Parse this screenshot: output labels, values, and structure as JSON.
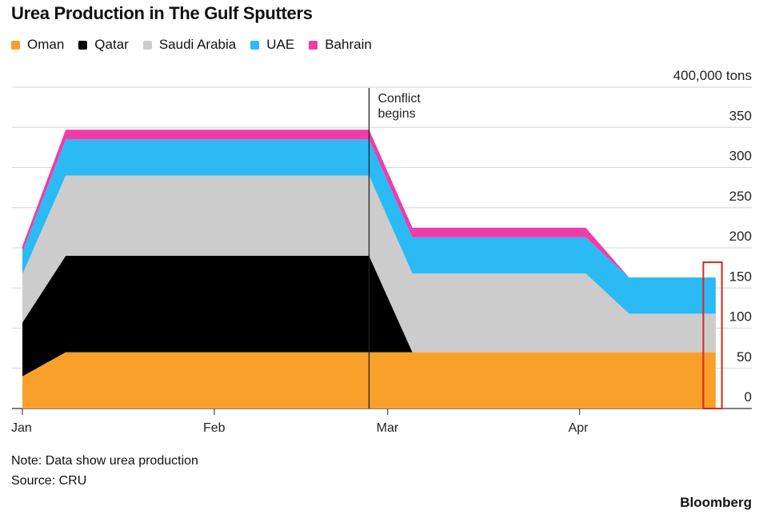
{
  "chart_data": {
    "type": "area",
    "stacked": true,
    "title": "Urea Production in The Gulf Sputters",
    "ylabel": "",
    "unit_label": "400,000 tons",
    "ylim": [
      0,
      400
    ],
    "yticks": [
      "0",
      "50",
      "100",
      "150",
      "200",
      "250",
      "300",
      "350"
    ],
    "xticks": [
      {
        "label": "Jan",
        "date": "Jan 1"
      },
      {
        "label": "Feb",
        "date": "Feb 1"
      },
      {
        "label": "Mar",
        "date": "Mar 1"
      },
      {
        "label": "Apr",
        "date": "Apr 1"
      }
    ],
    "grid": true,
    "legend_placement": "top-left",
    "x": [
      "Jan 1",
      "Jan 8",
      "Feb 26",
      "Mar 5",
      "Apr 2",
      "Apr 9",
      "Apr 23"
    ],
    "series": [
      {
        "name": "Oman",
        "color": "#f9a02a",
        "values": [
          40,
          70,
          70,
          70,
          70,
          70,
          70
        ]
      },
      {
        "name": "Qatar",
        "color": "#000000",
        "values": [
          67,
          120,
          120,
          0,
          0,
          0,
          0
        ]
      },
      {
        "name": "Saudi Arabia",
        "color": "#cccccc",
        "values": [
          60,
          100,
          100,
          98,
          98,
          48,
          48
        ]
      },
      {
        "name": "UAE",
        "color": "#2bbaf3",
        "values": [
          28,
          45,
          45,
          45,
          45,
          45,
          45
        ]
      },
      {
        "name": "Bahrain",
        "color": "#f03ca7",
        "values": [
          7,
          12,
          12,
          12,
          12,
          0,
          0
        ]
      }
    ],
    "annotations": [
      {
        "text_line1": "Conflict",
        "text_line2": "begins",
        "date": "Feb 26"
      }
    ],
    "highlight": {
      "from": "Apr 21",
      "to": "Apr 24",
      "ymax": 182,
      "color": "#d9261c"
    }
  },
  "footer": {
    "note": "Note: Data show urea production",
    "source": "Source: CRU",
    "brand": "Bloomberg"
  }
}
